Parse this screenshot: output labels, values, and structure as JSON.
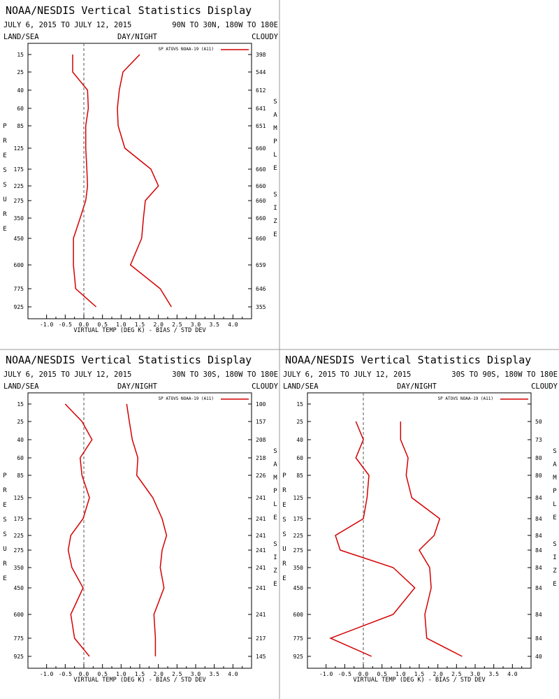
{
  "panels_title": "NOAA/NESDIS Vertical Statistics Display",
  "chart_data": [
    {
      "type": "line",
      "title": "NOAA/NESDIS Vertical Statistics Display",
      "dates": "JULY 6, 2015 TO JULY 12, 2015",
      "region": "90N TO 30N, 180W TO 180E",
      "surface": "LAND/SEA",
      "time_of_day": "DAY/NIGHT",
      "sky": "CLOUDY",
      "xlabel": "VIRTUAL TEMP (DEG K) - BIAS / STD DEV",
      "ylabel": "PRESSURE",
      "y2label": "SAMPLE SIZE",
      "xlim": [
        -1.5,
        4.5
      ],
      "xticks": [
        "-1.0",
        "-0.5",
        "0.0",
        "0.5",
        "1.0",
        "1.5",
        "2.0",
        "2.5",
        "3.0",
        "3.5",
        "4.0"
      ],
      "pressure_levels": [
        "15",
        "25",
        "40",
        "60",
        "85",
        "125",
        "175",
        "225",
        "275",
        "350",
        "450",
        "600",
        "775",
        "925"
      ],
      "sample_size": [
        "398",
        "544",
        "612",
        "641",
        "651",
        "660",
        "660",
        "660",
        "660",
        "660",
        "660",
        "659",
        "646",
        "355"
      ],
      "legend": "SP ATOVS NOAA-19 (A11)",
      "legend_position": "top-right",
      "series": [
        {
          "name": "SP ATOVS NOAA-19 (A11)",
          "role": "bias",
          "values": [
            -0.3,
            -0.3,
            0.1,
            0.12,
            0.05,
            0.05,
            0.08,
            0.1,
            0.05,
            -0.1,
            -0.28,
            -0.28,
            -0.22,
            0.33
          ]
        },
        {
          "name": "SP ATOVS NOAA-19 (A11)",
          "role": "std_dev",
          "values": [
            1.5,
            1.05,
            0.95,
            0.9,
            0.92,
            1.1,
            1.8,
            2.0,
            1.65,
            1.6,
            1.55,
            1.25,
            2.05,
            2.35
          ]
        }
      ],
      "color": "#d40000"
    },
    {
      "type": "line",
      "title": "NOAA/NESDIS Vertical Statistics Display",
      "dates": "JULY 6, 2015 TO JULY 12, 2015",
      "region": "30N TO 30S, 180W TO 180E",
      "surface": "LAND/SEA",
      "time_of_day": "DAY/NIGHT",
      "sky": "CLOUDY",
      "xlabel": "VIRTUAL TEMP (DEG K) - BIAS / STD DEV",
      "ylabel": "PRESSURE",
      "y2label": "SAMPLE SIZE",
      "xlim": [
        -1.5,
        4.5
      ],
      "xticks": [
        "-1.0",
        "-0.5",
        "0.0",
        "0.5",
        "1.0",
        "1.5",
        "2.0",
        "2.5",
        "3.0",
        "3.5",
        "4.0"
      ],
      "pressure_levels": [
        "15",
        "25",
        "40",
        "60",
        "85",
        "125",
        "175",
        "225",
        "275",
        "350",
        "450",
        "600",
        "775",
        "925"
      ],
      "sample_size": [
        "100",
        "157",
        "208",
        "218",
        "226",
        "241",
        "241",
        "241",
        "241",
        "241",
        "241",
        "241",
        "217",
        "145"
      ],
      "legend": "SP ATOVS NOAA-19 (A11)",
      "legend_position": "top-right",
      "series": [
        {
          "name": "SP ATOVS NOAA-19 (A11)",
          "role": "bias",
          "values": [
            -0.5,
            -0.05,
            0.22,
            -0.1,
            -0.05,
            0.15,
            -0.02,
            -0.35,
            -0.42,
            -0.32,
            -0.02,
            -0.35,
            -0.25,
            0.15
          ]
        },
        {
          "name": "SP ATOVS NOAA-19 (A11)",
          "role": "std_dev",
          "values": [
            1.15,
            1.22,
            1.3,
            1.45,
            1.42,
            1.85,
            2.1,
            2.22,
            2.1,
            2.05,
            2.15,
            1.88,
            1.92,
            1.92
          ]
        }
      ],
      "color": "#d40000"
    },
    {
      "type": "line",
      "title": "NOAA/NESDIS Vertical Statistics Display",
      "dates": "JULY 6, 2015 TO JULY 12, 2015",
      "region": "30S TO 90S, 180W TO 180E",
      "surface": "LAND/SEA",
      "time_of_day": "DAY/NIGHT",
      "sky": "CLOUDY",
      "xlabel": "VIRTUAL TEMP (DEG K) - BIAS / STD DEV",
      "ylabel": "PRESSURE",
      "y2label": "SAMPLE SIZE",
      "xlim": [
        -1.5,
        4.5
      ],
      "xticks": [
        "-1.0",
        "-0.5",
        "0.0",
        "0.5",
        "1.0",
        "1.5",
        "2.0",
        "2.5",
        "3.0",
        "3.5",
        "4.0"
      ],
      "pressure_levels": [
        "15",
        "25",
        "40",
        "60",
        "85",
        "125",
        "175",
        "225",
        "275",
        "350",
        "450",
        "600",
        "775",
        "925"
      ],
      "sample_size": [
        "",
        "50",
        "73",
        "80",
        "80",
        "84",
        "84",
        "84",
        "84",
        "84",
        "84",
        "84",
        "84",
        "40"
      ],
      "legend": "SP ATOVS NOAA-19 (A11)",
      "legend_position": "top-right",
      "series": [
        {
          "name": "SP ATOVS NOAA-19 (A11)",
          "role": "bias",
          "values": [
            null,
            -0.2,
            0.0,
            -0.2,
            0.15,
            0.1,
            0.0,
            -0.75,
            -0.62,
            0.8,
            1.38,
            0.8,
            -0.88,
            0.22
          ]
        },
        {
          "name": "SP ATOVS NOAA-19 (A11)",
          "role": "std_dev",
          "values": [
            null,
            1.0,
            1.0,
            1.2,
            1.15,
            1.3,
            2.05,
            1.9,
            1.5,
            1.78,
            1.82,
            1.65,
            1.7,
            2.65
          ]
        }
      ],
      "color": "#d40000"
    }
  ]
}
